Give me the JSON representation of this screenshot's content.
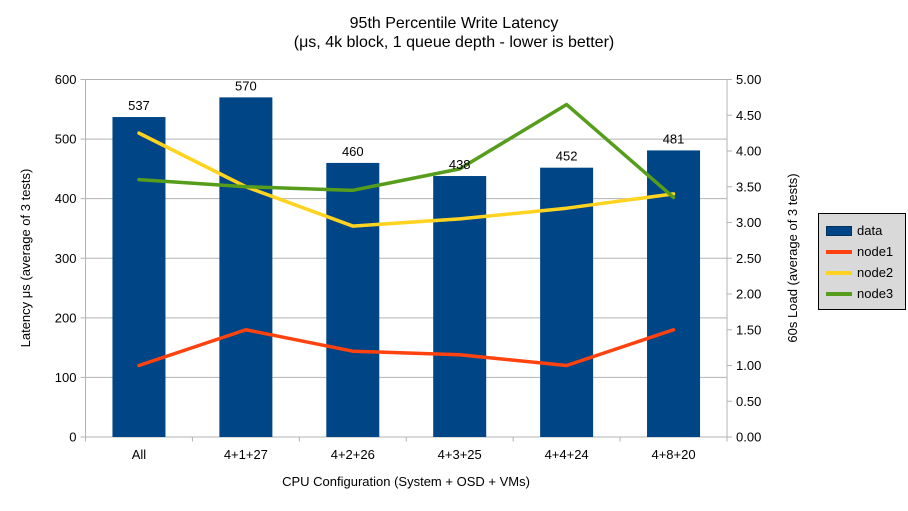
{
  "chart_data": {
    "type": "combo-bar-line",
    "title": "95th Percentile Write Latency",
    "subtitle": "(μs, 4k block, 1 queue depth - lower is better)",
    "categories": [
      "All",
      "4+1+27",
      "4+2+26",
      "4+3+25",
      "4+4+24",
      "4+8+20"
    ],
    "x_axis": {
      "title": "CPU Configuration (System + OSD + VMs)"
    },
    "left_axis": {
      "title": "Latency μs (average of 3 tests)",
      "min": 0,
      "max": 600,
      "step": 100,
      "decimals": 0
    },
    "right_axis": {
      "title": "60s Load (average of 3 tests)",
      "min": 0,
      "max": 5,
      "step": 0.5,
      "decimals": 2
    },
    "bar_series": {
      "name": "data",
      "axis": "left",
      "color": "#004586",
      "values": [
        537,
        570,
        460,
        438,
        452,
        481
      ],
      "show_value_labels": true
    },
    "line_series": [
      {
        "name": "node1",
        "axis": "right",
        "color": "#ff420e",
        "values": [
          1.0,
          1.5,
          1.2,
          1.15,
          1.0,
          1.5
        ]
      },
      {
        "name": "node2",
        "axis": "right",
        "color": "#ffd320",
        "values": [
          4.25,
          3.5,
          2.95,
          3.05,
          3.2,
          3.4
        ]
      },
      {
        "name": "node3",
        "axis": "right",
        "color": "#579d1c",
        "values": [
          3.6,
          3.5,
          3.45,
          3.75,
          4.65,
          3.35
        ]
      }
    ],
    "grid": "horizontal",
    "legend_position": "right"
  },
  "style": {
    "grid_color": "#b3b3b3",
    "axis_color": "#b3b3b3",
    "text_color": "#000000",
    "legend_bg": "#d9d9d9",
    "legend_border": "#000000",
    "background": "#ffffff"
  }
}
